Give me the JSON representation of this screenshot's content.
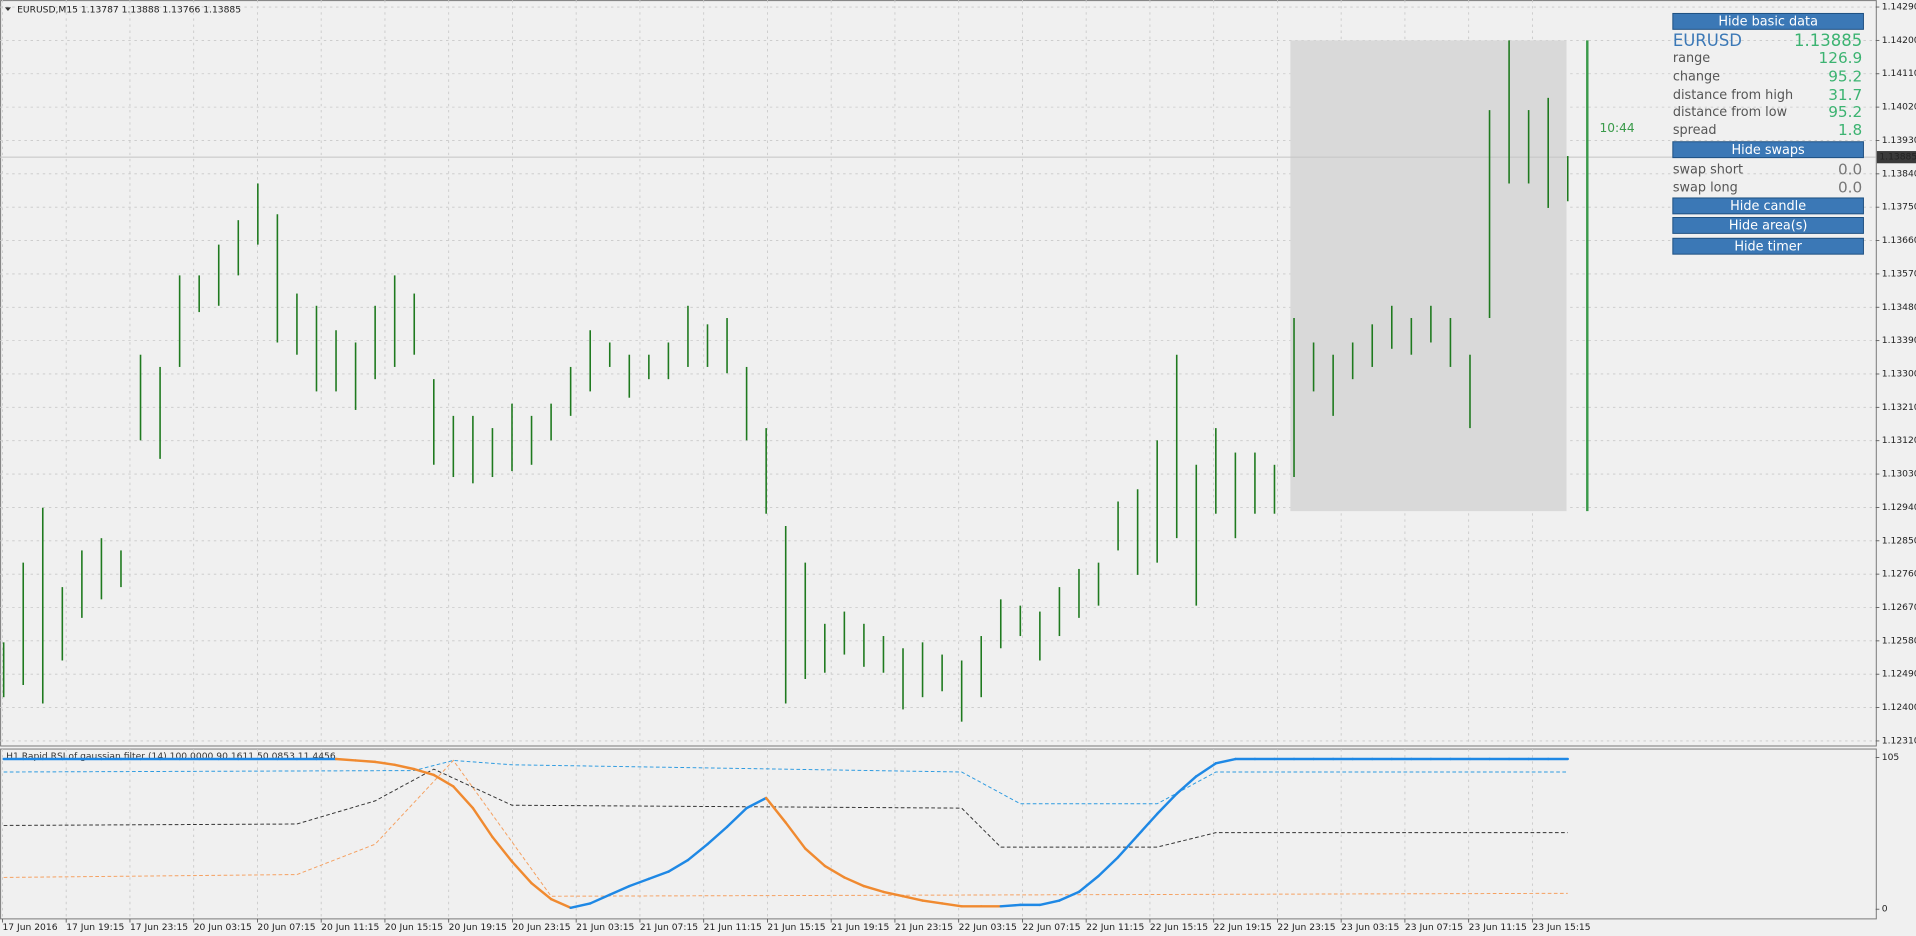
{
  "chart_data": {
    "type": "ohlc",
    "header": "EURUSD,M15  1.13787 1.13888 1.13766 1.13885",
    "x_labels": [
      "17 Jun 2016",
      "17 Jun 19:15",
      "17 Jun 23:15",
      "20 Jun 03:15",
      "20 Jun 07:15",
      "20 Jun 11:15",
      "20 Jun 15:15",
      "20 Jun 19:15",
      "20 Jun 23:15",
      "21 Jun 03:15",
      "21 Jun 07:15",
      "21 Jun 11:15",
      "21 Jun 15:15",
      "21 Jun 19:15",
      "21 Jun 23:15",
      "22 Jun 03:15",
      "22 Jun 07:15",
      "22 Jun 11:15",
      "22 Jun 15:15",
      "22 Jun 19:15",
      "22 Jun 23:15",
      "23 Jun 03:15",
      "23 Jun 07:15",
      "23 Jun 11:15",
      "23 Jun 15:15"
    ],
    "high": [
      1.12576,
      1.12791,
      1.12939,
      1.12725,
      1.12824,
      1.12857,
      1.12824,
      1.13352,
      1.13319,
      1.13566,
      1.13566,
      1.13649,
      1.13715,
      1.13814,
      1.13731,
      1.13517,
      1.13484,
      1.13418,
      1.13385,
      1.13484,
      1.13566,
      1.13517,
      1.13286,
      1.13187,
      1.13187,
      1.13154,
      1.1322,
      1.13187,
      1.1322,
      1.13319,
      1.13418,
      1.13385,
      1.13352,
      1.13352,
      1.13385,
      1.13484,
      1.13434,
      1.13451,
      1.13319,
      1.13154,
      1.1289,
      1.12791,
      1.12626,
      1.12659,
      1.12626,
      1.12593,
      1.1256,
      1.12576,
      1.12543,
      1.12527,
      1.12593,
      1.12692,
      1.12675,
      1.12659,
      1.12725,
      1.12774,
      1.12791,
      1.12956,
      1.12989,
      1.13121,
      1.13352,
      1.13055,
      1.13154,
      1.13088,
      1.13088,
      1.13055,
      1.13451,
      1.13385,
      1.13352,
      1.13385,
      1.13434,
      1.13484,
      1.13451,
      1.13484,
      1.13451,
      1.13352,
      1.14012,
      1.142,
      1.14012,
      1.14045,
      1.13888
    ],
    "low": [
      1.12428,
      1.12461,
      1.12411,
      1.12527,
      1.12642,
      1.12692,
      1.12725,
      1.13121,
      1.13071,
      1.13319,
      1.13467,
      1.13484,
      1.13566,
      1.13649,
      1.13385,
      1.13352,
      1.13253,
      1.13253,
      1.13203,
      1.13286,
      1.13319,
      1.13352,
      1.13055,
      1.13022,
      1.13005,
      1.13022,
      1.13038,
      1.13055,
      1.13121,
      1.13187,
      1.13253,
      1.13319,
      1.13236,
      1.13286,
      1.13286,
      1.13319,
      1.13319,
      1.13302,
      1.13121,
      1.12923,
      1.12411,
      1.12477,
      1.12494,
      1.12543,
      1.1251,
      1.12494,
      1.12395,
      1.12428,
      1.12444,
      1.12362,
      1.12428,
      1.1256,
      1.12593,
      1.12527,
      1.12593,
      1.12642,
      1.12675,
      1.12824,
      1.12758,
      1.12791,
      1.12857,
      1.12675,
      1.12923,
      1.12857,
      1.12923,
      1.12923,
      1.13022,
      1.13253,
      1.13187,
      1.13286,
      1.13319,
      1.13368,
      1.13352,
      1.13385,
      1.13319,
      1.13154,
      1.13451,
      1.13814,
      1.13814,
      1.13748,
      1.13766
    ],
    "color": "#1f7a1f",
    "ylim": [
      1.12298,
      1.14309
    ],
    "yticks": [
      {
        "value": 1.1429,
        "label": "1.14290"
      },
      {
        "value": 1.142,
        "label": "1.14200"
      },
      {
        "value": 1.1411,
        "label": "1.14110"
      },
      {
        "value": 1.1402,
        "label": "1.14020"
      },
      {
        "value": 1.1393,
        "label": "1.13930"
      },
      {
        "value": 1.1384,
        "label": "1.13840"
      },
      {
        "value": 1.1375,
        "label": "1.13750"
      },
      {
        "value": 1.1366,
        "label": "1.13660"
      },
      {
        "value": 1.1357,
        "label": "1.13570"
      },
      {
        "value": 1.1348,
        "label": "1.13480"
      },
      {
        "value": 1.1339,
        "label": "1.13390"
      },
      {
        "value": 1.133,
        "label": "1.13300"
      },
      {
        "value": 1.1321,
        "label": "1.13210"
      },
      {
        "value": 1.1312,
        "label": "1.13120"
      },
      {
        "value": 1.1303,
        "label": "1.13030"
      },
      {
        "value": 1.1294,
        "label": "1.12940"
      },
      {
        "value": 1.1285,
        "label": "1.12850"
      },
      {
        "value": 1.1276,
        "label": "1.12760"
      },
      {
        "value": 1.1267,
        "label": "1.12670"
      },
      {
        "value": 1.1258,
        "label": "1.12580"
      },
      {
        "value": 1.1249,
        "label": "1.12490"
      },
      {
        "value": 1.124,
        "label": "1.12400"
      },
      {
        "value": 1.1231,
        "label": "1.12310"
      }
    ],
    "current_price": 1.13885,
    "area": {
      "high": 1.142,
      "low": 1.1293,
      "color": "#d9d9d9"
    },
    "range_bar_color": "#3a9a4a",
    "timer": "10:44",
    "grid": true,
    "indicator": {
      "title": "H1  Rapid RSI of gaussian filter (14) 100.0000 90.1611 50.0853 11.4456",
      "ylim": [
        -6.7,
        110.9
      ],
      "yticks": [
        105,
        0
      ],
      "values": [
        104,
        104,
        104,
        104,
        104,
        104,
        104,
        104,
        104,
        104,
        104,
        104,
        104,
        104,
        104,
        104,
        104,
        104,
        103,
        102,
        100,
        97,
        93,
        85,
        70,
        50,
        33,
        18,
        7,
        1,
        4,
        10,
        16,
        21,
        26,
        34,
        45,
        57,
        70,
        77,
        60,
        42,
        30,
        22,
        16,
        12,
        9,
        6,
        4,
        2,
        2,
        2,
        3,
        3,
        6,
        12,
        23,
        36,
        51,
        66,
        80,
        92,
        101,
        104,
        104,
        104,
        104,
        104,
        104,
        104,
        104,
        104,
        104,
        104,
        104,
        104,
        104,
        104,
        104,
        104,
        104
      ],
      "up_color": "#1e88e5",
      "down_color": "#f08a30",
      "bands": [
        {
          "color": "#2e9be0",
          "x": [
            0,
            21,
            23,
            26,
            49,
            52,
            59,
            62,
            80
          ],
          "values": [
            95,
            96,
            103,
            100,
            95,
            73,
            73,
            95,
            95
          ]
        },
        {
          "color": "#333333",
          "x": [
            0,
            15,
            19,
            22,
            26,
            49,
            51,
            59,
            62,
            80
          ],
          "values": [
            58,
            59,
            75,
            97,
            72,
            70,
            43,
            43,
            53,
            53
          ]
        },
        {
          "color": "#f5a060",
          "x": [
            0,
            15,
            19,
            23,
            28,
            80
          ],
          "values": [
            22,
            24,
            45,
            103,
            9,
            11
          ]
        }
      ]
    }
  },
  "panel": {
    "buttons": [
      "Hide basic data",
      "Hide swaps",
      "Hide candle",
      "Hide area(s)",
      "Hide timer"
    ],
    "symbol": "EURUSD",
    "price": "1.13885",
    "rows": [
      [
        "range",
        "126.9"
      ],
      [
        "change",
        "95.2"
      ],
      [
        "distance from high",
        "31.7"
      ],
      [
        "distance from low",
        "95.2"
      ],
      [
        "spread",
        "1.8"
      ]
    ],
    "swaps": [
      [
        "swap short",
        "0.0"
      ],
      [
        "swap long",
        "0.0"
      ]
    ]
  }
}
